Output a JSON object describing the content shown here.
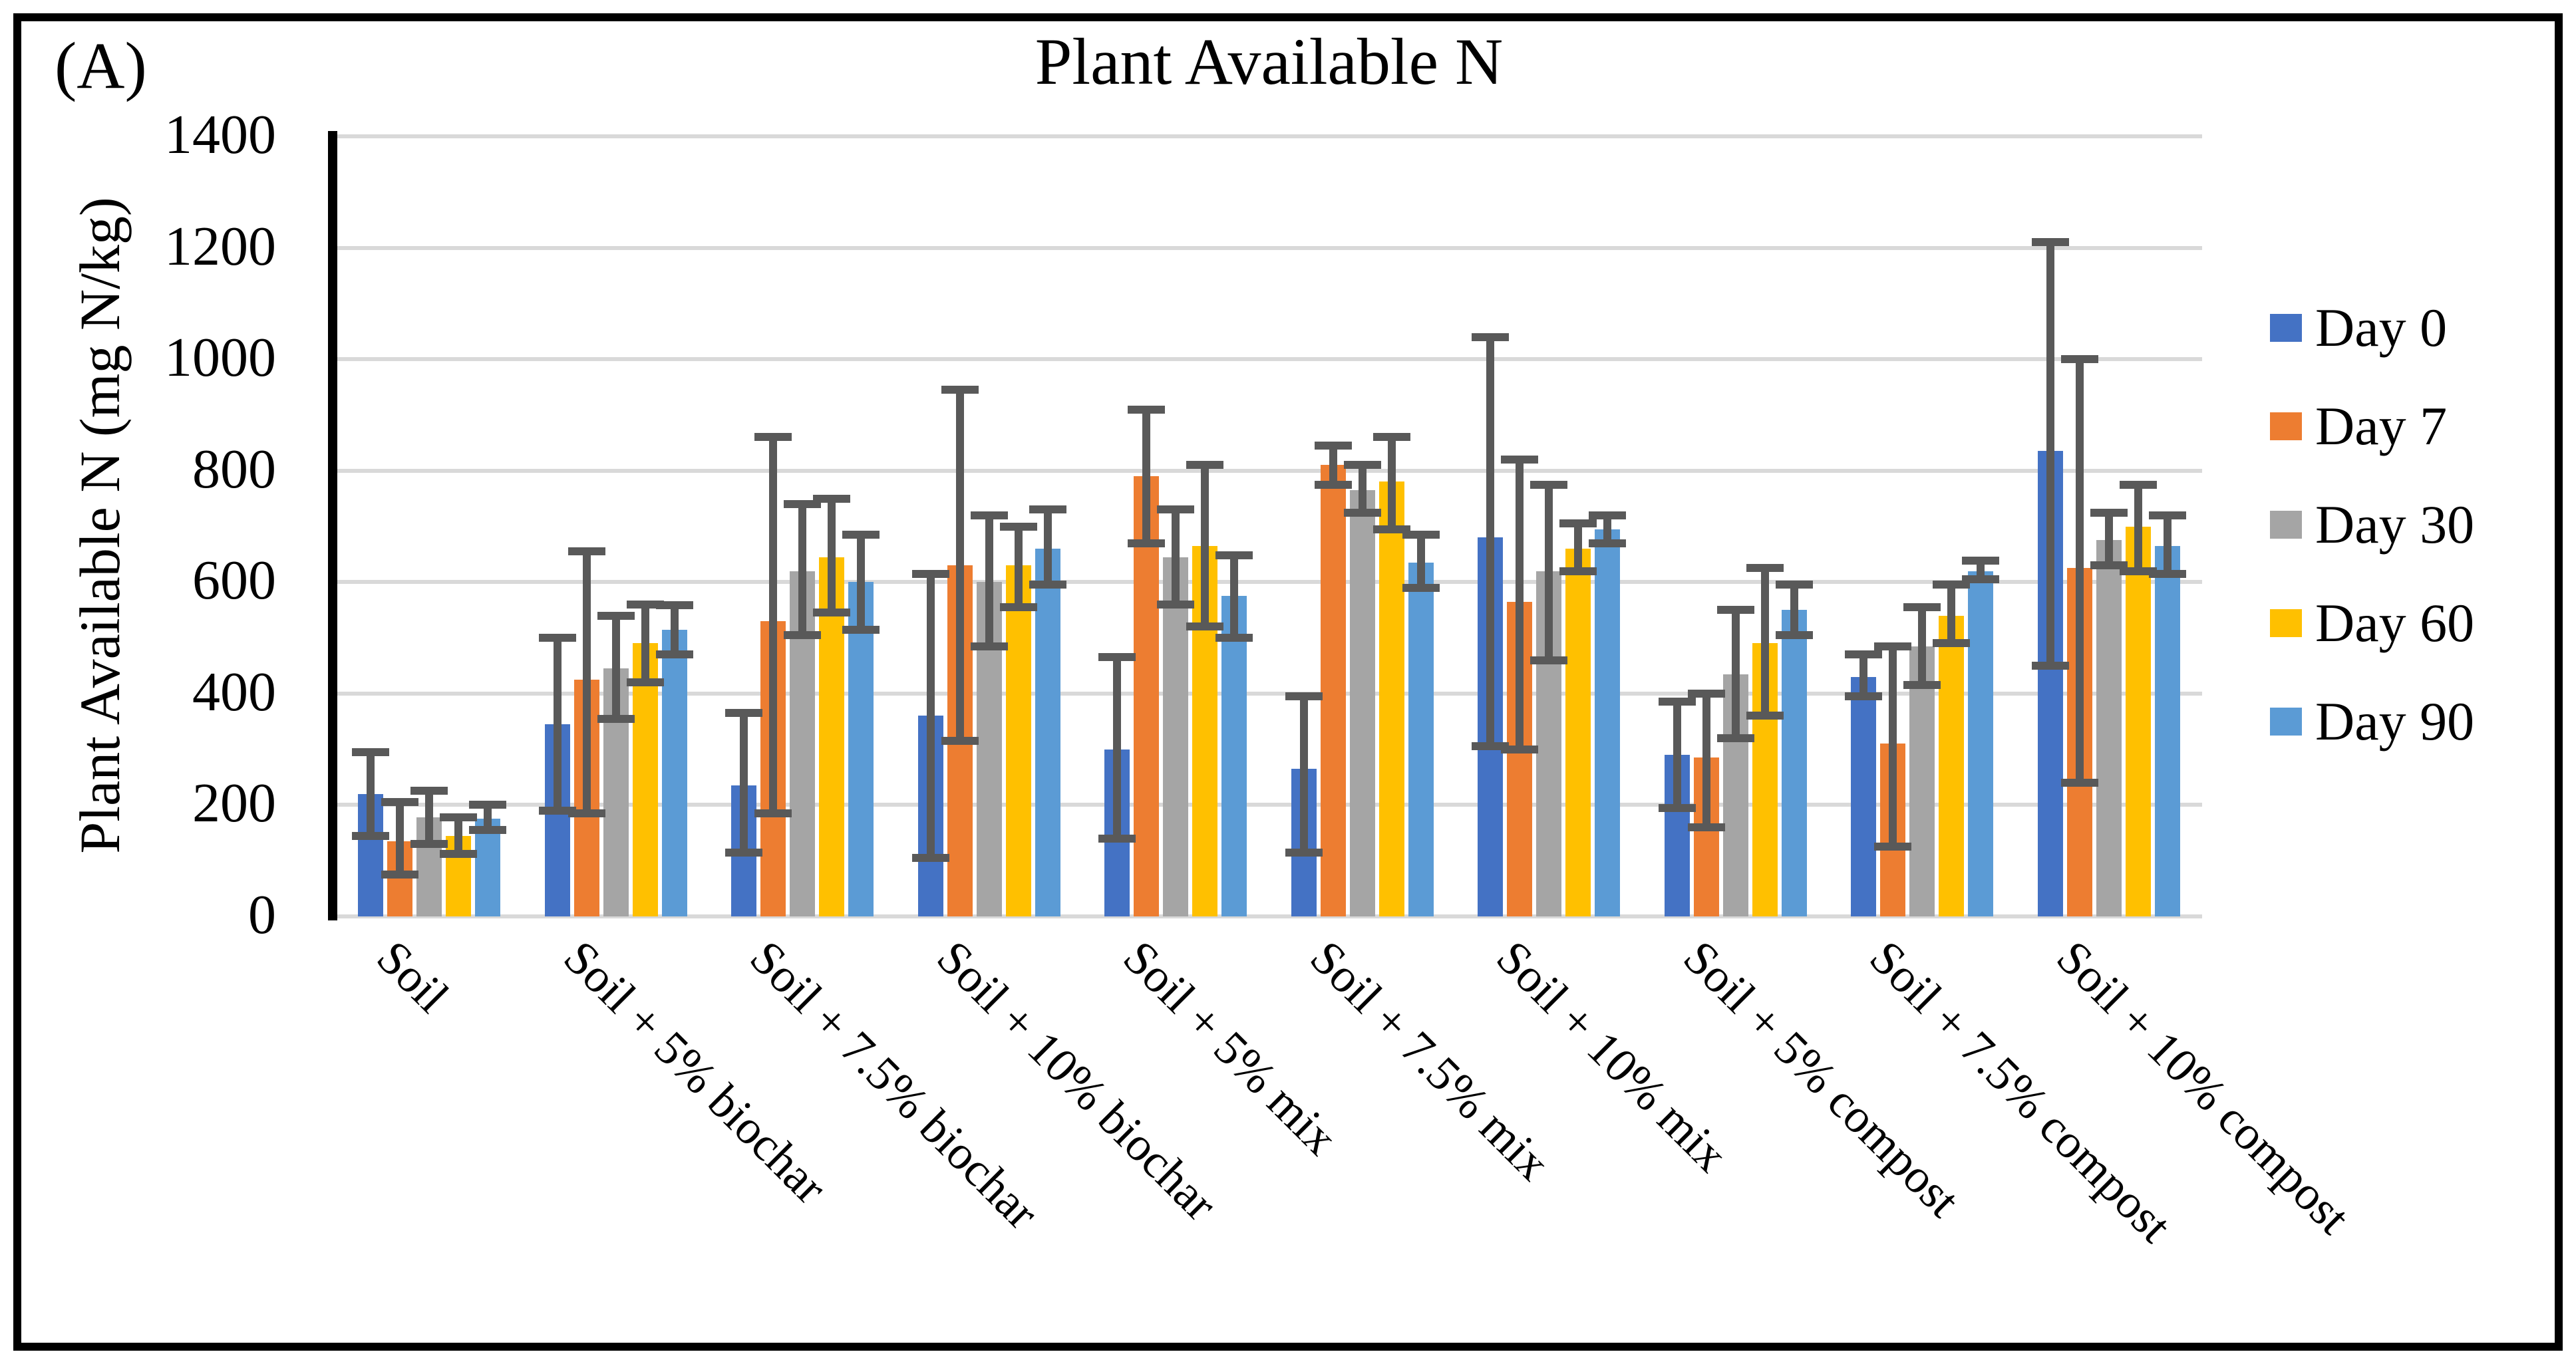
{
  "panel_label": "(A)",
  "chart_data": {
    "type": "bar",
    "title": "Plant Available N",
    "ylabel": "Plant Available N (mg N/kg)",
    "xlabel": "",
    "ylim": [
      0,
      1400
    ],
    "ytick_step": 200,
    "ytick_labels": [
      "0",
      "200",
      "400",
      "600",
      "800",
      "1000",
      "1200",
      "1400"
    ],
    "grid": true,
    "legend_position": "right",
    "error_bars": true,
    "categories": [
      "Soil",
      "Soil + 5% biochar",
      "Soil + 7.5% biochar",
      "Soil + 10% biochar",
      "Soil + 5% mix",
      "Soil + 7.5% mix",
      "Soil + 10% mix",
      "Soil + 5% compost",
      "Soil + 7.5% compost",
      "Soil + 10% compost"
    ],
    "series": [
      {
        "name": "Day 0",
        "color": "#4472C4",
        "values": [
          220,
          345,
          235,
          360,
          300,
          265,
          680,
          290,
          430,
          835
        ],
        "err_low": [
          145,
          190,
          115,
          105,
          140,
          115,
          305,
          195,
          395,
          450
        ],
        "err_high": [
          295,
          500,
          365,
          615,
          465,
          395,
          1040,
          385,
          470,
          1210
        ]
      },
      {
        "name": "Day 7",
        "color": "#ED7D31",
        "values": [
          135,
          425,
          530,
          630,
          790,
          810,
          565,
          285,
          310,
          625
        ],
        "err_low": [
          75,
          185,
          185,
          315,
          670,
          775,
          300,
          160,
          125,
          240
        ],
        "err_high": [
          205,
          655,
          860,
          945,
          910,
          845,
          820,
          400,
          485,
          1000
        ]
      },
      {
        "name": "Day 30",
        "color": "#A5A5A5",
        "values": [
          178,
          445,
          620,
          600,
          645,
          765,
          620,
          435,
          485,
          675
        ],
        "err_low": [
          130,
          355,
          505,
          485,
          560,
          725,
          460,
          320,
          415,
          630
        ],
        "err_high": [
          225,
          540,
          740,
          720,
          730,
          810,
          775,
          550,
          555,
          725
        ]
      },
      {
        "name": "Day 60",
        "color": "#FFC000",
        "values": [
          145,
          490,
          645,
          630,
          665,
          780,
          660,
          490,
          540,
          700
        ],
        "err_low": [
          112,
          420,
          545,
          555,
          520,
          695,
          620,
          360,
          490,
          620
        ],
        "err_high": [
          178,
          560,
          750,
          700,
          810,
          860,
          705,
          625,
          595,
          775
        ]
      },
      {
        "name": "Day 90",
        "color": "#5B9BD5",
        "values": [
          175,
          515,
          600,
          660,
          575,
          635,
          695,
          550,
          620,
          665
        ],
        "err_low": [
          155,
          470,
          515,
          595,
          500,
          590,
          670,
          505,
          605,
          615
        ],
        "err_high": [
          200,
          558,
          685,
          730,
          648,
          685,
          720,
          595,
          638,
          720
        ]
      }
    ],
    "style": {
      "error_bar_color": "#595959",
      "gridline_color": "#D9D9D9",
      "axis_color": "#000000",
      "border_color": "#000000",
      "background": "#FFFFFF"
    }
  }
}
